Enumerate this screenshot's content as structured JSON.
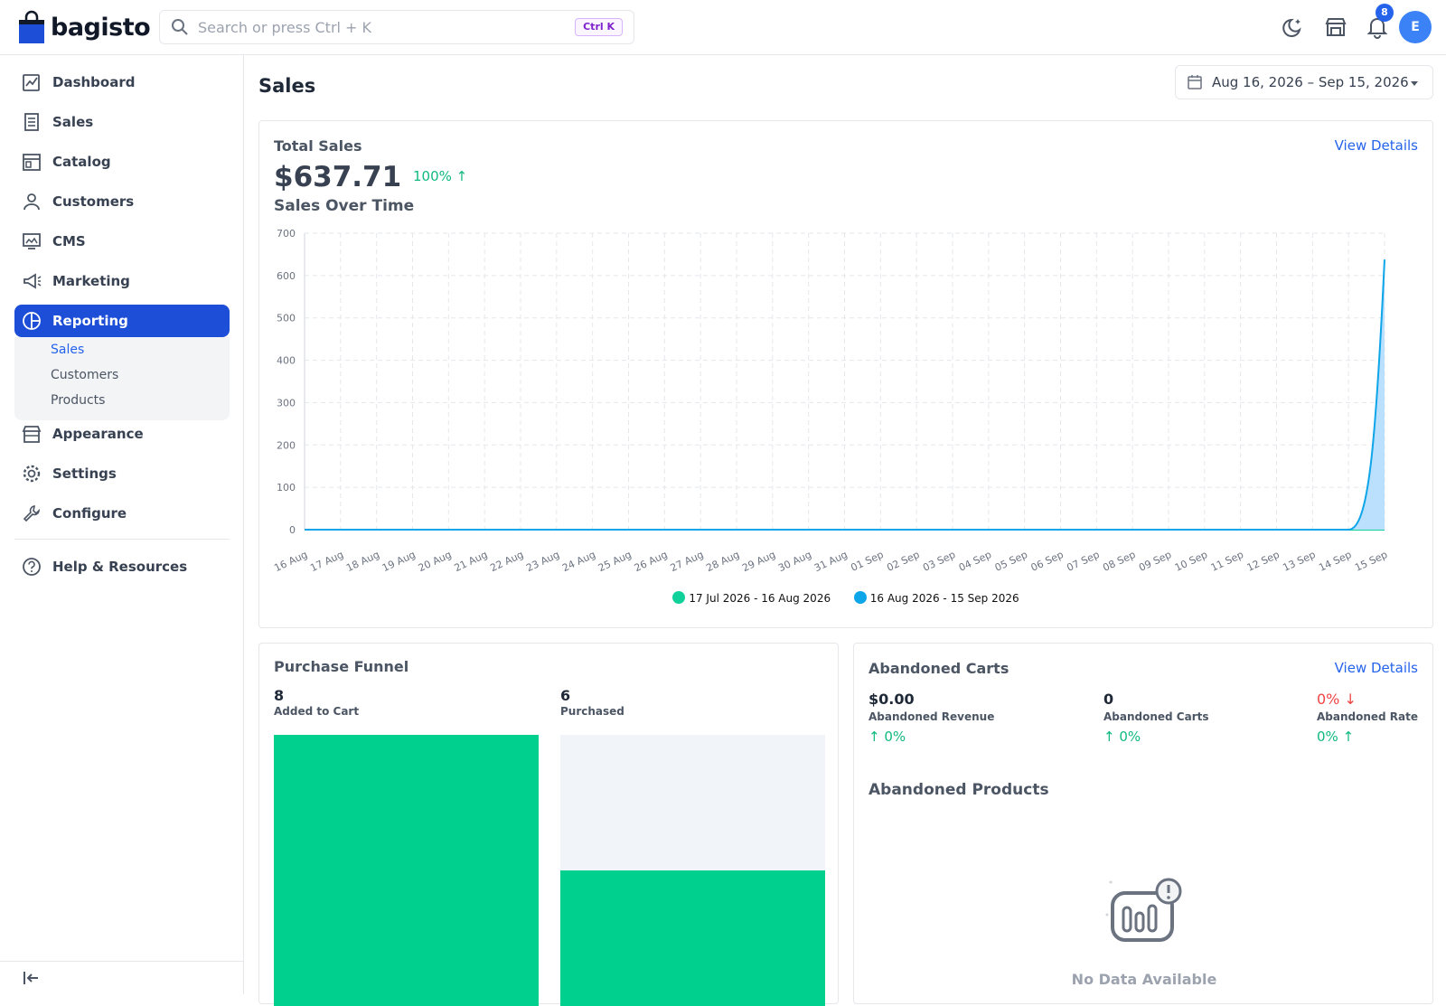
{
  "header": {
    "logo_text": "bagisto",
    "search_placeholder": "Search or press Ctrl + K",
    "shortcut": "Ctrl K",
    "notification_count": "8",
    "avatar_initial": "E"
  },
  "sidebar": {
    "items": [
      {
        "label": "Dashboard",
        "icon": "dashboard-icon"
      },
      {
        "label": "Sales",
        "icon": "sales-icon"
      },
      {
        "label": "Catalog",
        "icon": "catalog-icon"
      },
      {
        "label": "Customers",
        "icon": "customers-icon"
      },
      {
        "label": "CMS",
        "icon": "cms-icon"
      },
      {
        "label": "Marketing",
        "icon": "marketing-icon"
      },
      {
        "label": "Reporting",
        "icon": "reporting-icon"
      },
      {
        "label": "Appearance",
        "icon": "appearance-icon"
      },
      {
        "label": "Settings",
        "icon": "settings-icon"
      },
      {
        "label": "Configure",
        "icon": "configure-icon"
      },
      {
        "label": "Help & Resources",
        "icon": "help-icon"
      }
    ],
    "reporting_sub": [
      "Sales",
      "Customers",
      "Products"
    ],
    "active_item": "Reporting",
    "active_sub": "Sales"
  },
  "page": {
    "title": "Sales",
    "date_range": "Aug 16, 2026 – Sep 15, 2026"
  },
  "total_sales": {
    "title": "Total Sales",
    "view_details": "View Details",
    "amount": "$637.71",
    "change": "100%",
    "chart_title": "Sales Over Time"
  },
  "chart_data": {
    "type": "area",
    "title": "Sales Over Time",
    "x": [
      "16 Aug",
      "17 Aug",
      "18 Aug",
      "19 Aug",
      "20 Aug",
      "21 Aug",
      "22 Aug",
      "23 Aug",
      "24 Aug",
      "25 Aug",
      "26 Aug",
      "27 Aug",
      "28 Aug",
      "29 Aug",
      "30 Aug",
      "31 Aug",
      "01 Sep",
      "02 Sep",
      "03 Sep",
      "04 Sep",
      "05 Sep",
      "06 Sep",
      "07 Sep",
      "08 Sep",
      "09 Sep",
      "10 Sep",
      "11 Sep",
      "12 Sep",
      "13 Sep",
      "14 Sep",
      "15 Sep"
    ],
    "ylim": [
      0,
      700
    ],
    "yticks": [
      0,
      100,
      200,
      300,
      400,
      500,
      600,
      700
    ],
    "series": [
      {
        "name": "17 Jul 2026 - 16 Aug 2026",
        "color": "#10d19a",
        "values": [
          0,
          0,
          0,
          0,
          0,
          0,
          0,
          0,
          0,
          0,
          0,
          0,
          0,
          0,
          0,
          0,
          0,
          0,
          0,
          0,
          0,
          0,
          0,
          0,
          0,
          0,
          0,
          0,
          0,
          0,
          0
        ]
      },
      {
        "name": "16 Aug 2026 - 15 Sep 2026",
        "color": "#0ea5e9",
        "values": [
          0,
          0,
          0,
          0,
          0,
          0,
          0,
          0,
          0,
          0,
          0,
          0,
          0,
          0,
          0,
          0,
          0,
          0,
          0,
          0,
          0,
          0,
          0,
          0,
          0,
          0,
          0,
          0,
          0,
          0,
          637.71
        ]
      }
    ],
    "grid": true,
    "legend": "bottom"
  },
  "funnel": {
    "title": "Purchase Funnel",
    "stages": [
      {
        "value": "8",
        "label": "Added to Cart",
        "fraction": 1.0
      },
      {
        "value": "6",
        "label": "Purchased",
        "fraction": 0.5
      }
    ]
  },
  "abandoned": {
    "title": "Abandoned Carts",
    "view_details": "View Details",
    "stats": [
      {
        "value": "$0.00",
        "label": "Abandoned Revenue",
        "change": "0%",
        "dir": "up"
      },
      {
        "value": "0",
        "label": "Abandoned Carts",
        "change": "0%",
        "dir": "up"
      },
      {
        "value": "0%",
        "label": "Abandoned Rate",
        "change": "0%",
        "dir": "up"
      }
    ],
    "products_title": "Abandoned Products",
    "no_data": "No Data Available"
  }
}
